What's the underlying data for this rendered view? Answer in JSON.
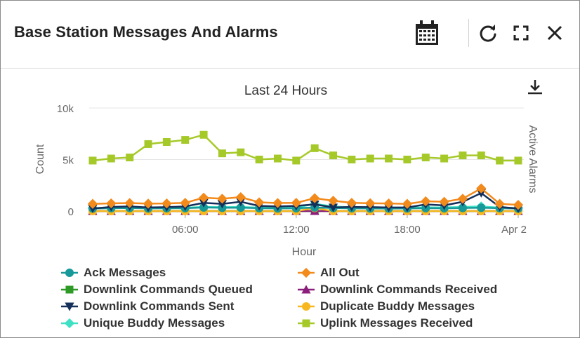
{
  "header": {
    "title": "Base Station Messages And Alarms",
    "icons": [
      "calendar-icon",
      "refresh-icon",
      "expand-icon",
      "close-icon"
    ]
  },
  "chart_data": {
    "type": "line",
    "title": "Last 24 Hours",
    "xlabel": "Hour",
    "ylabel": "Count",
    "y2label": "Active Alarms",
    "x_ticks": [
      "06:00",
      "12:00",
      "18:00",
      "Apr 2"
    ],
    "y_ticks": [
      "0",
      "5k",
      "10k"
    ],
    "ylim": [
      0,
      10000
    ],
    "grid": true,
    "legend_position": "bottom",
    "x": [
      "01:00",
      "02:00",
      "03:00",
      "04:00",
      "05:00",
      "06:00",
      "07:00",
      "08:00",
      "09:00",
      "10:00",
      "11:00",
      "12:00",
      "13:00",
      "14:00",
      "15:00",
      "16:00",
      "17:00",
      "18:00",
      "19:00",
      "20:00",
      "21:00",
      "22:00",
      "23:00",
      "00:00"
    ],
    "series": [
      {
        "name": "Ack Messages",
        "color": "#17999a",
        "marker": "circle",
        "values": [
          250,
          280,
          300,
          260,
          270,
          280,
          350,
          320,
          330,
          280,
          260,
          270,
          350,
          300,
          270,
          260,
          250,
          260,
          280,
          270,
          300,
          320,
          280,
          250
        ]
      },
      {
        "name": "All Out",
        "color": "#f28a1c",
        "marker": "diamond",
        "values": [
          700,
          750,
          780,
          720,
          740,
          800,
          1300,
          1200,
          1350,
          850,
          780,
          800,
          1250,
          1000,
          800,
          760,
          740,
          700,
          950,
          900,
          1200,
          2200,
          700,
          600
        ]
      },
      {
        "name": "Downlink Commands Queued",
        "color": "#2e9a26",
        "marker": "square",
        "values": [
          0,
          0,
          0,
          0,
          0,
          0,
          0,
          0,
          0,
          0,
          0,
          0,
          0,
          0,
          0,
          0,
          0,
          0,
          0,
          0,
          0,
          0,
          0,
          0
        ]
      },
      {
        "name": "Downlink Commands Received",
        "color": "#8b1e7a",
        "marker": "triangle-up",
        "values": [
          0,
          0,
          0,
          0,
          0,
          0,
          0,
          0,
          0,
          0,
          0,
          0,
          0,
          0,
          0,
          0,
          0,
          0,
          0,
          0,
          0,
          0,
          0,
          0
        ]
      },
      {
        "name": "Downlink Commands Sent",
        "color": "#142f5a",
        "marker": "triangle-down",
        "values": [
          250,
          400,
          450,
          350,
          380,
          450,
          800,
          700,
          900,
          500,
          450,
          500,
          650,
          350,
          400,
          380,
          350,
          350,
          650,
          550,
          900,
          1750,
          400,
          250
        ]
      },
      {
        "name": "Duplicate Buddy Messages",
        "color": "#f6b81e",
        "marker": "circle",
        "values": [
          0,
          0,
          0,
          0,
          0,
          0,
          0,
          0,
          0,
          0,
          0,
          0,
          300,
          0,
          0,
          0,
          0,
          0,
          0,
          0,
          0,
          0,
          0,
          0
        ]
      },
      {
        "name": "Unique Buddy Messages",
        "color": "#3fe0c4",
        "marker": "diamond",
        "values": [
          300,
          320,
          330,
          310,
          320,
          330,
          400,
          380,
          400,
          330,
          320,
          330,
          700,
          450,
          350,
          340,
          330,
          320,
          360,
          350,
          400,
          450,
          330,
          300
        ]
      },
      {
        "name": "Uplink Messages Received",
        "color": "#a6c92a",
        "marker": "square",
        "values": [
          4900,
          5100,
          5200,
          6500,
          6700,
          6900,
          7400,
          5600,
          5700,
          5000,
          5100,
          4900,
          6100,
          5400,
          5000,
          5100,
          5100,
          5000,
          5200,
          5100,
          5400,
          5400,
          4900,
          4900
        ]
      }
    ]
  }
}
